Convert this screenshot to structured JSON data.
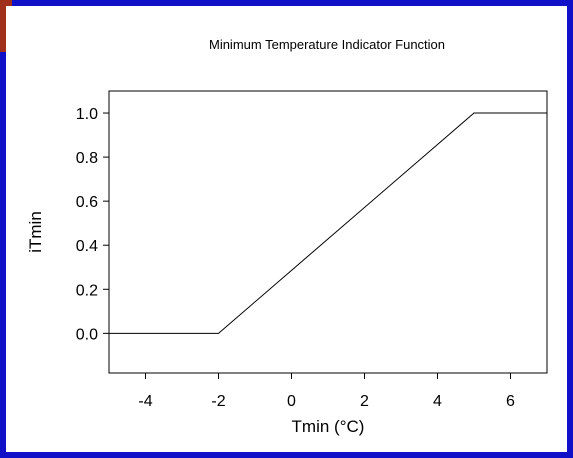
{
  "chart_data": {
    "type": "line",
    "title": "Minimum Temperature Indicator Function",
    "xlabel": "Tmin (°C)",
    "ylabel": "iTmin",
    "xlim": [
      -5,
      7
    ],
    "ylim": [
      -0.18,
      1.1
    ],
    "xticks": [
      -4,
      -2,
      0,
      2,
      4,
      6
    ],
    "yticks": [
      0.0,
      0.2,
      0.4,
      0.6,
      0.8,
      1.0
    ],
    "xtick_labels": [
      "-4",
      "-2",
      "0",
      "2",
      "4",
      "6"
    ],
    "ytick_labels": [
      "0.0",
      "0.2",
      "0.4",
      "0.6",
      "0.8",
      "1.0"
    ],
    "grid": false,
    "series": [
      {
        "x": [
          -5,
          -2,
          5,
          7
        ],
        "y": [
          0.0,
          0.0,
          1.0,
          1.0
        ]
      }
    ],
    "colors": {
      "background": "#1010c8",
      "accent": "#a0301a",
      "panel": "#ffffff",
      "line": "#000000"
    }
  }
}
